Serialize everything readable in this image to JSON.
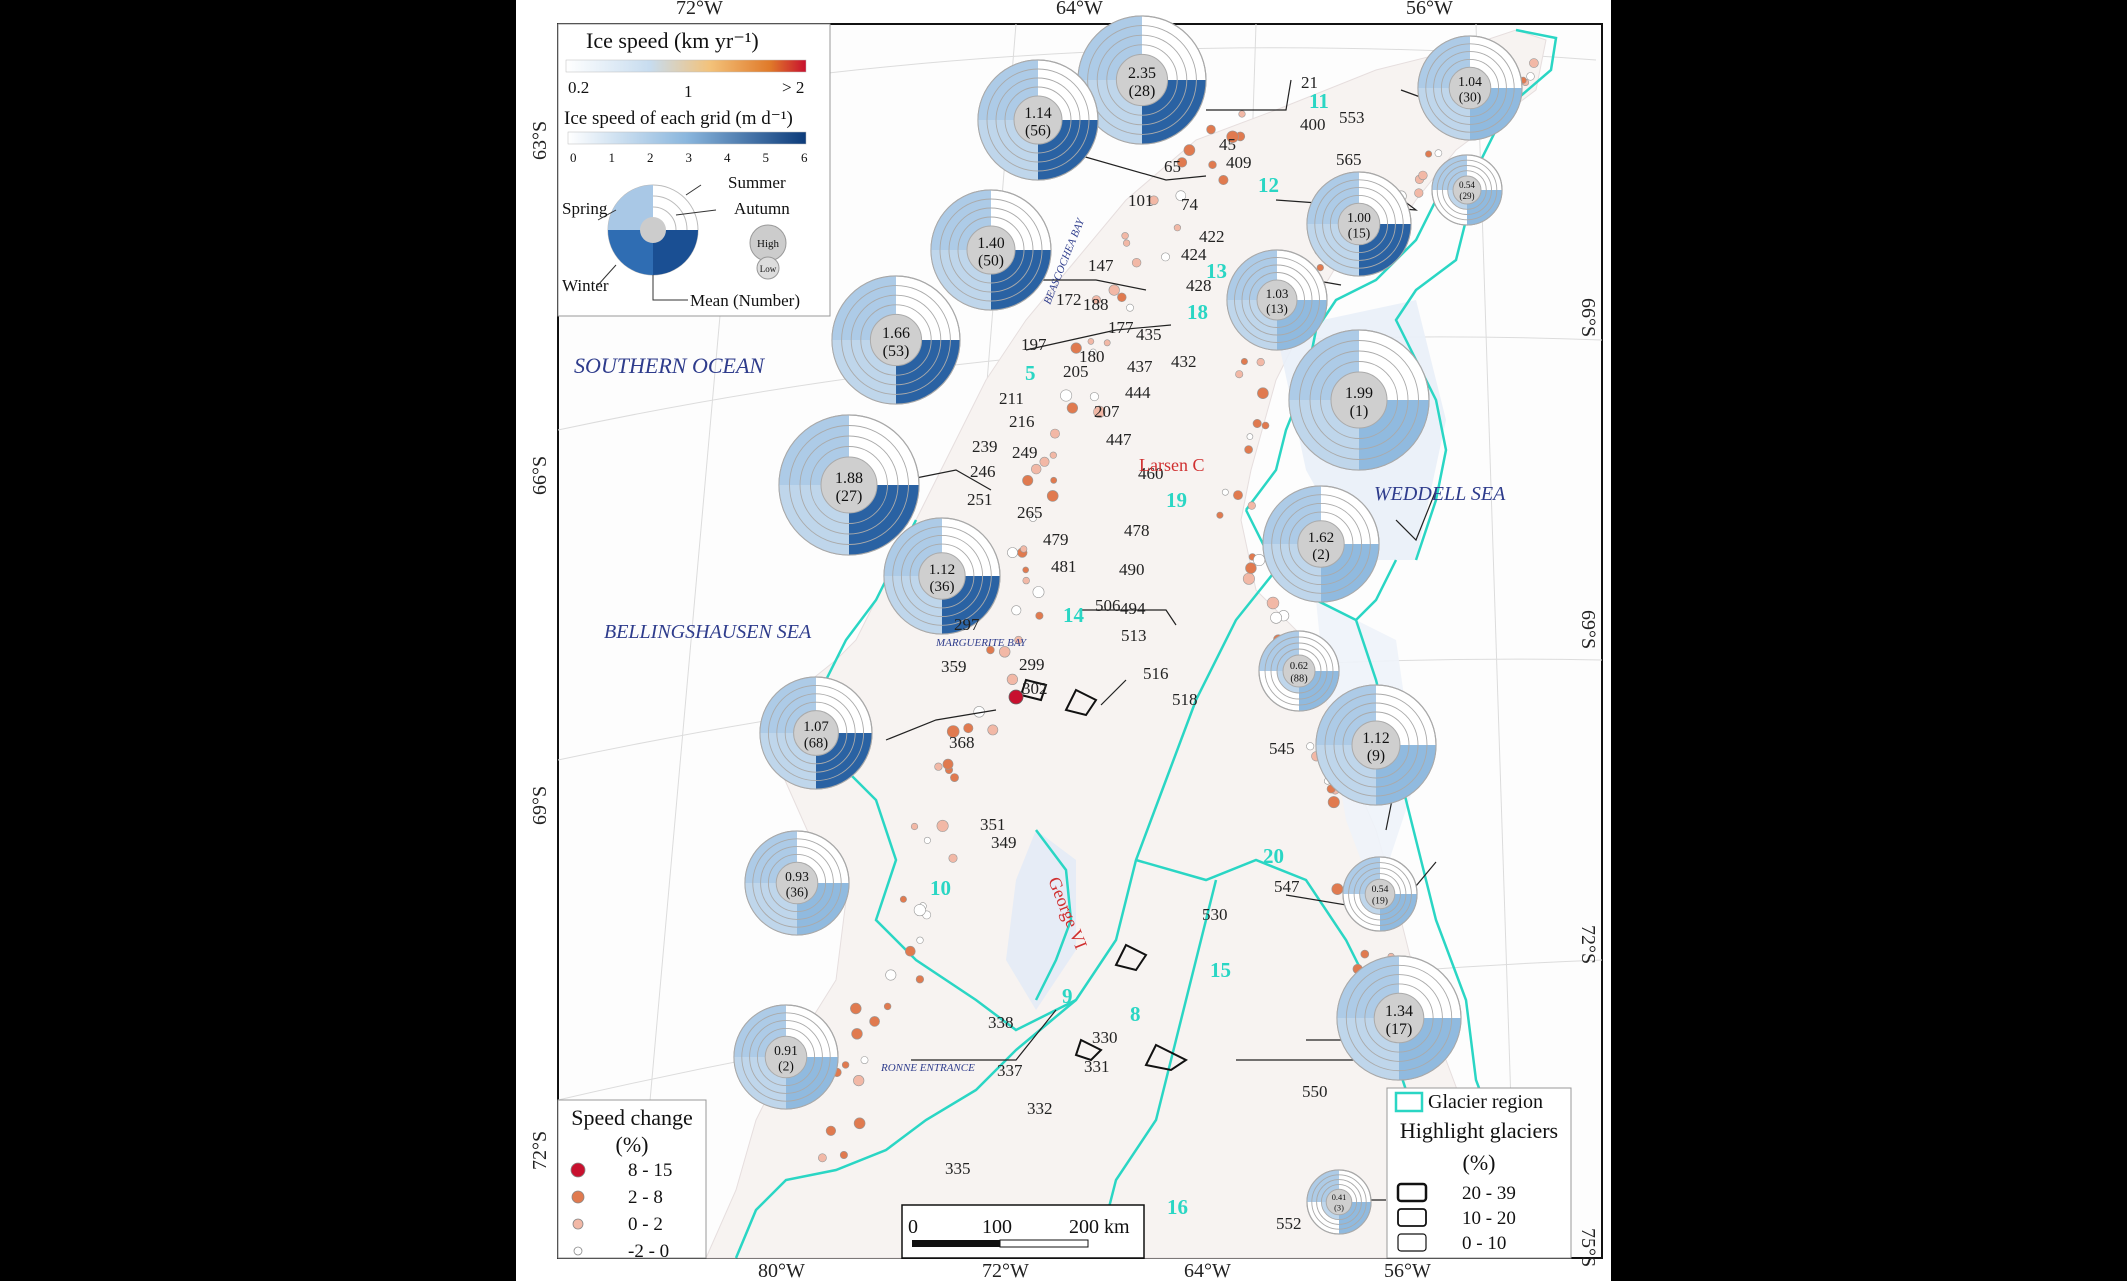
{
  "coordinates": {
    "top": [
      "72°W",
      "64°W",
      "56°W"
    ],
    "bottom": [
      "80°W",
      "72°W",
      "64°W",
      "56°W"
    ],
    "left": [
      "63°S",
      "66°S",
      "69°S",
      "72°S"
    ],
    "right": [
      "66°S",
      "69°S",
      "72°S",
      "75°S"
    ]
  },
  "seas": {
    "southern_ocean": "SOUTHERN OCEAN",
    "bellingshausen": "BELLINGSHAUSEN SEA",
    "weddell": "WEDDELL SEA"
  },
  "places": {
    "larsen_c": "Larsen C",
    "george_vi": "George VI",
    "beascochea": "BEASCOCHEA BAY",
    "marguerite": "MARGUERITE BAY",
    "ronne": "RONNE ENTRANCE"
  },
  "legend_speed": {
    "title": "Ice  speed  (km yr⁻¹)",
    "ticks": [
      "0.2",
      "1",
      "> 2"
    ],
    "grid_title": "Ice speed of each grid (m d⁻¹)",
    "grid_ticks": [
      "0",
      "1",
      "2",
      "3",
      "4",
      "5",
      "6"
    ],
    "seasons": {
      "summer": "Summer",
      "autumn": "Autumn",
      "spring": "Spring",
      "winter": "Winter",
      "mean": "Mean (Number)"
    },
    "high": "High",
    "low": "Low"
  },
  "legend_change": {
    "title": "Speed change",
    "unit": "(%)",
    "classes": [
      {
        "label": "8 - 15",
        "color": "#c8102e"
      },
      {
        "label": "2 - 8",
        "color": "#e07a4f"
      },
      {
        "label": "0 - 2",
        "color": "#f2b8a6"
      },
      {
        "label": "-2 - 0",
        "color": "#ffffff"
      }
    ]
  },
  "legend_region": {
    "glacier_region": "Glacier region",
    "highlight_title": "Highlight glaciers",
    "unit": "(%)",
    "classes": [
      "20 - 39",
      "10 - 20",
      "0 - 10"
    ]
  },
  "scalebar": {
    "labels": [
      "0",
      "100",
      "200 km"
    ]
  },
  "region_labels": [
    "11",
    "12",
    "13",
    "18",
    "5",
    "19",
    "14",
    "20",
    "10",
    "15",
    "9",
    "8",
    "16"
  ],
  "glacier_numbers": [
    "21",
    "45",
    "409",
    "400",
    "553",
    "565",
    "65",
    "101",
    "74",
    "422",
    "424",
    "147",
    "428",
    "172",
    "177",
    "188",
    "435",
    "180",
    "197",
    "437",
    "432",
    "205",
    "444",
    "211",
    "207",
    "216",
    "447",
    "239",
    "249",
    "460",
    "246",
    "251",
    "265",
    "478",
    "479",
    "490",
    "481",
    "494",
    "506",
    "297",
    "513",
    "299",
    "516",
    "302",
    "518",
    "359",
    "368",
    "545",
    "351",
    "349",
    "547",
    "530",
    "338",
    "330",
    "337",
    "331",
    "332",
    "550",
    "335",
    "552"
  ],
  "pies": [
    {
      "mean": "2.35",
      "count": "(28)"
    },
    {
      "mean": "1.14",
      "count": "(56)"
    },
    {
      "mean": "1.04",
      "count": "(30)"
    },
    {
      "mean": "0.54",
      "count": "(29)"
    },
    {
      "mean": "1.40",
      "count": "(50)"
    },
    {
      "mean": "1.00",
      "count": "(15)"
    },
    {
      "mean": "1.66",
      "count": "(53)"
    },
    {
      "mean": "1.03",
      "count": "(13)"
    },
    {
      "mean": "1.99",
      "count": "(1)"
    },
    {
      "mean": "1.88",
      "count": "(27)"
    },
    {
      "mean": "1.62",
      "count": "(2)"
    },
    {
      "mean": "1.12",
      "count": "(36)"
    },
    {
      "mean": "0.62",
      "count": "(88)"
    },
    {
      "mean": "1.07",
      "count": "(68)"
    },
    {
      "mean": "1.12",
      "count": "(9)"
    },
    {
      "mean": "0.93",
      "count": "(36)"
    },
    {
      "mean": "0.54",
      "count": "(19)"
    },
    {
      "mean": "1.34",
      "count": "(17)"
    },
    {
      "mean": "0.91",
      "count": "(2)"
    },
    {
      "mean": "0.41",
      "count": "(3)"
    }
  ],
  "colors": {
    "glacier_outline": "#2ad6c4",
    "sea_text": "#2e3c8c",
    "pie_light": "#b9d3ea",
    "pie_dark": "#1f5a9e"
  }
}
